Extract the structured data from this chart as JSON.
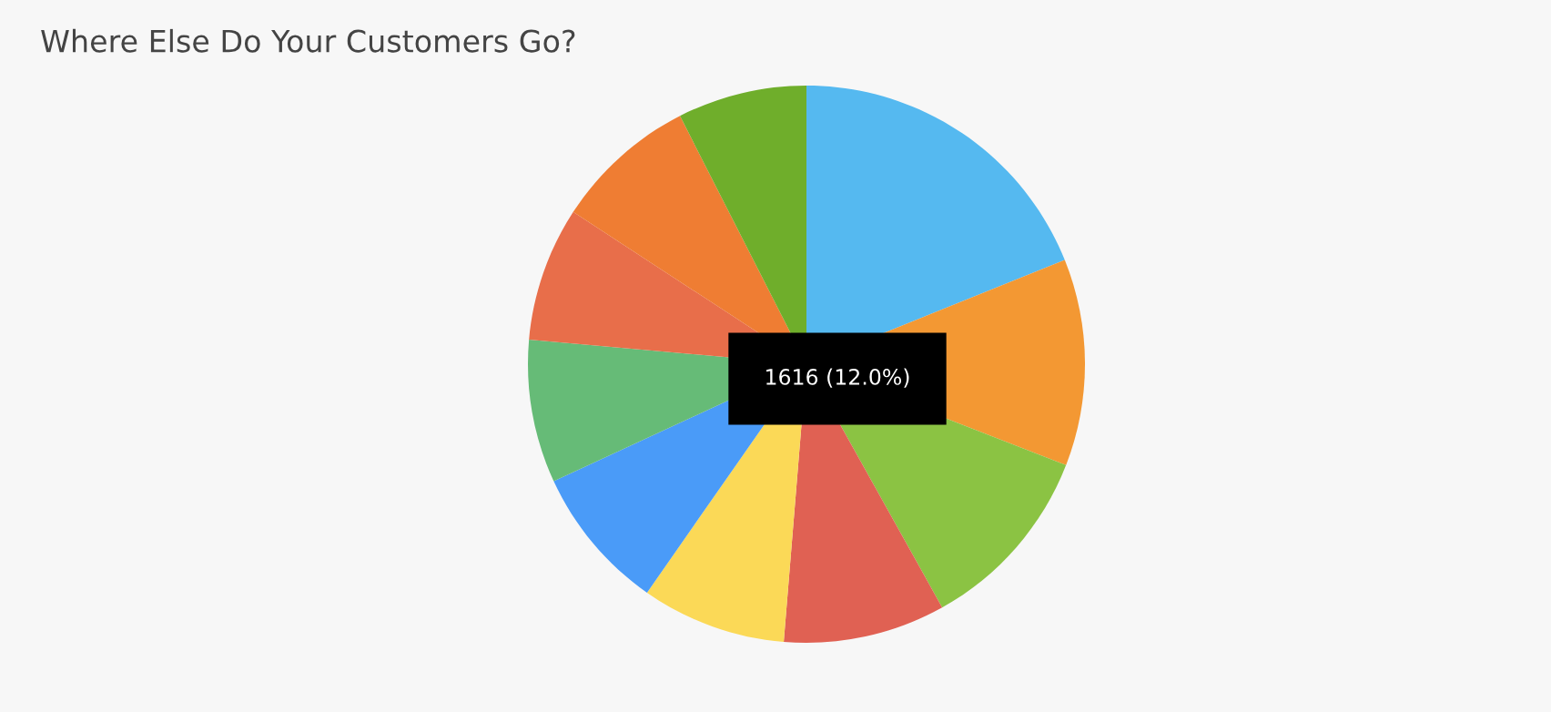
{
  "chart_data": {
    "type": "pie",
    "title": "Where Else Do Your Customers Go?",
    "categories": [
      null,
      null,
      null,
      null,
      null,
      null,
      null,
      null,
      null,
      null
    ],
    "values": [
      18.9,
      12.0,
      11.0,
      9.4,
      8.4,
      8.4,
      8.3,
      7.8,
      8.3,
      7.5
    ],
    "colors": [
      "#55b9f0",
      "#f39833",
      "#8bc343",
      "#e06153",
      "#fbd957",
      "#4a9bf8",
      "#66bb77",
      "#e86e4a",
      "#ef7d33",
      "#6fae2b"
    ],
    "annotations": [
      "1616 (12.0%)"
    ]
  }
}
